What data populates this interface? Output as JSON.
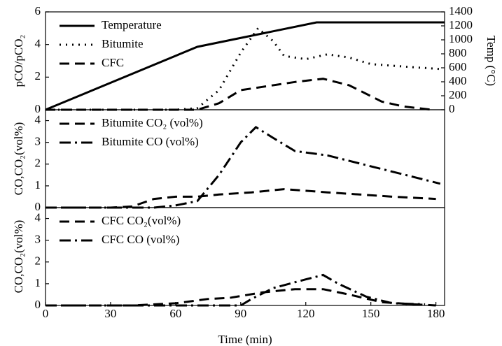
{
  "chart_data": [
    {
      "type": "line",
      "ylabel": "pCO/pCO₂",
      "y2label": "Temp (°C)",
      "xlim": [
        0,
        184
      ],
      "ylim": [
        0,
        6
      ],
      "yticks": [
        0,
        2,
        4,
        6
      ],
      "y2lim": [
        0,
        1400
      ],
      "y2ticks": [
        0,
        200,
        400,
        600,
        800,
        1000,
        1200,
        1400
      ],
      "legend": "upper left",
      "series": [
        {
          "name": "Temperature",
          "color": "#000000",
          "style": "solid",
          "axis": "y2",
          "x": [
            0,
            70,
            125,
            184
          ],
          "values": [
            0,
            900,
            1250,
            1250
          ]
        },
        {
          "name": "Bitumite",
          "color": "#000000",
          "style": "dotted",
          "x": [
            0,
            60,
            70,
            80,
            90,
            98,
            105,
            110,
            120,
            130,
            140,
            150,
            160,
            170,
            182
          ],
          "values": [
            0,
            0,
            0.1,
            1.2,
            3.5,
            5.0,
            4.2,
            3.3,
            3.1,
            3.4,
            3.2,
            2.8,
            2.7,
            2.6,
            2.5
          ]
        },
        {
          "name": "CFC",
          "color": "#000000",
          "style": "dashed",
          "x": [
            0,
            70,
            80,
            90,
            100,
            115,
            128,
            140,
            155,
            165,
            178
          ],
          "values": [
            0,
            0,
            0.4,
            1.2,
            1.4,
            1.7,
            1.9,
            1.5,
            0.5,
            0.2,
            0
          ]
        }
      ]
    },
    {
      "type": "line",
      "ylabel": "CO,CO₂(vol%)",
      "xlim": [
        0,
        184
      ],
      "ylim": [
        0,
        4.5
      ],
      "yticks": [
        0,
        1,
        2,
        3,
        4
      ],
      "legend": "upper left",
      "series": [
        {
          "name": "Bitumite CO₂ (vol%)",
          "color": "#000000",
          "style": "dashed",
          "x": [
            0,
            30,
            40,
            50,
            60,
            70,
            80,
            95,
            110,
            130,
            160,
            180
          ],
          "values": [
            0,
            0,
            0.05,
            0.4,
            0.5,
            0.5,
            0.6,
            0.7,
            0.85,
            0.7,
            0.5,
            0.4
          ]
        },
        {
          "name": "Bitumite CO  (vol%)",
          "color": "#000000",
          "style": "dashdot",
          "x": [
            0,
            50,
            60,
            70,
            80,
            90,
            97,
            105,
            115,
            130,
            150,
            170,
            182
          ],
          "values": [
            0,
            0,
            0.1,
            0.3,
            1.5,
            3.0,
            3.7,
            3.2,
            2.6,
            2.4,
            1.9,
            1.4,
            1.1
          ]
        }
      ]
    },
    {
      "type": "line",
      "ylabel": "CO,CO₂(vol%)",
      "xlabel": "Time (min)",
      "xlim": [
        0,
        184
      ],
      "xticks": [
        0,
        30,
        60,
        90,
        120,
        150,
        180
      ],
      "ylim": [
        0,
        4.5
      ],
      "yticks": [
        0,
        1,
        2,
        3,
        4
      ],
      "legend": "upper left",
      "series": [
        {
          "name": "CFC CO₂(vol%)",
          "color": "#000000",
          "style": "dashed",
          "x": [
            0,
            40,
            60,
            75,
            85,
            100,
            115,
            128,
            140,
            155,
            170,
            180
          ],
          "values": [
            0,
            0,
            0.1,
            0.3,
            0.35,
            0.6,
            0.75,
            0.75,
            0.5,
            0.15,
            0.05,
            0
          ]
        },
        {
          "name": "CFC CO (vol%)",
          "color": "#000000",
          "style": "dashdot",
          "x": [
            0,
            90,
            95,
            105,
            120,
            128,
            135,
            148,
            160,
            175
          ],
          "values": [
            0,
            0,
            0.3,
            0.8,
            1.2,
            1.4,
            1.0,
            0.4,
            0.1,
            0.05
          ]
        }
      ]
    }
  ]
}
